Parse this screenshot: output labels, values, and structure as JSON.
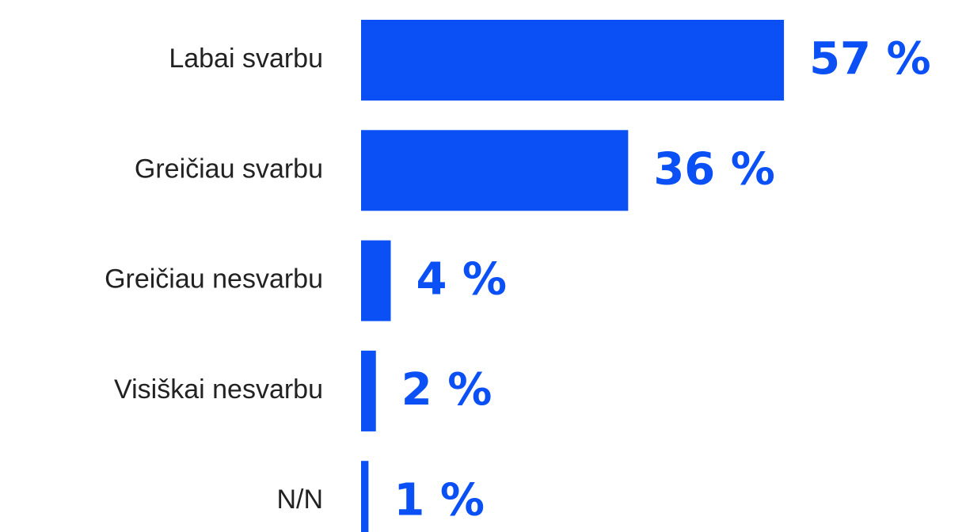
{
  "chart_data": {
    "type": "bar",
    "orientation": "horizontal",
    "categories": [
      "Labai svarbu",
      "Greičiau svarbu",
      "Greičiau nesvarbu",
      "Visiškai nesvarbu",
      "N/N"
    ],
    "values": [
      57,
      36,
      4,
      2,
      1
    ],
    "value_labels": [
      "57 %",
      "36 %",
      "4 %",
      "2 %",
      "1 %"
    ],
    "color": "#0b50f5"
  }
}
